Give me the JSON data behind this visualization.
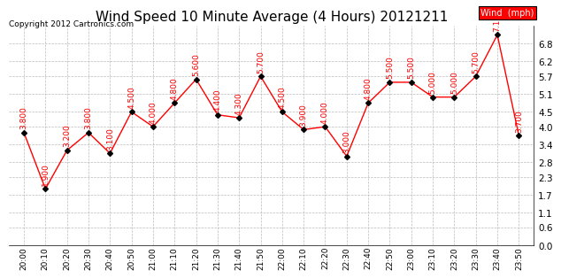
{
  "title": "Wind Speed 10 Minute Average (4 Hours) 20121211",
  "copyright": "Copyright 2012 Cartronics.com",
  "legend_label": "Wind  (mph)",
  "x_labels": [
    "20:00",
    "20:10",
    "20:20",
    "20:30",
    "20:40",
    "20:50",
    "21:00",
    "21:10",
    "21:20",
    "21:30",
    "21:40",
    "21:50",
    "22:00",
    "22:10",
    "22:20",
    "22:30",
    "22:40",
    "22:50",
    "23:00",
    "23:10",
    "23:20",
    "23:30",
    "23:40",
    "23:50"
  ],
  "y_values": [
    3.8,
    1.9,
    3.2,
    3.8,
    3.1,
    4.5,
    4.0,
    4.8,
    5.6,
    4.4,
    4.3,
    5.7,
    4.5,
    3.9,
    4.0,
    3.0,
    4.8,
    5.5,
    5.5,
    5.0,
    5.0,
    5.7,
    7.1,
    3.7
  ],
  "annotations": [
    "3.800",
    "1.900",
    "3.200",
    "3.800",
    "3.100",
    "4.500",
    "4.000",
    "4.800",
    "5.600",
    "4.400",
    "4.300",
    "5.700",
    "4.500",
    "3.900",
    "4.000",
    "3.000",
    "4.800",
    "5.500",
    "5.500",
    "5.000",
    "5.000",
    "5.700",
    "7.100",
    "3.700"
  ],
  "ylim": [
    0.0,
    7.4
  ],
  "yticks": [
    0.0,
    0.6,
    1.1,
    1.7,
    2.3,
    2.8,
    3.4,
    4.0,
    4.5,
    5.1,
    5.7,
    6.2,
    6.8
  ],
  "line_color": "red",
  "marker_color": "black",
  "marker_size": 3,
  "bg_color": "#ffffff",
  "grid_color": "#bbbbbb",
  "title_fontsize": 11,
  "annotation_fontsize": 6.5,
  "annotation_color": "red",
  "legend_bg": "red",
  "legend_fg": "white"
}
